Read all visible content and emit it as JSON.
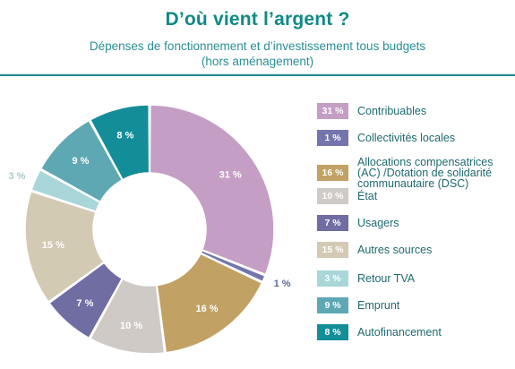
{
  "header": {
    "title": "D’où vient l’argent ?",
    "subtitle_line1": "Dépenses de fonctionnement et d’investissement tous budgets",
    "subtitle_line2": "(hors aménagement)"
  },
  "chart_data": {
    "type": "pie",
    "donut": true,
    "title": "D’où vient l’argent ?",
    "subtitle": "Dépenses de fonctionnement et d’investissement tous budgets (hors aménagement)",
    "legend_position": "right",
    "slices": [
      {
        "label": "Contribuables",
        "value": 31,
        "display": "31 %",
        "color": "#c49ec4"
      },
      {
        "label": "Collectivités locales",
        "value": 1,
        "display": "1 %",
        "color": "#7475ad"
      },
      {
        "label": "Allocations compensatrices\n(AC) /Dotation de solidarité\ncommunautaire (DSC)",
        "value": 16,
        "display": "16 %",
        "color": "#c2a164"
      },
      {
        "label": "État",
        "value": 10,
        "display": "10 %",
        "color": "#d0cac6"
      },
      {
        "label": "Usagers",
        "value": 7,
        "display": "7 %",
        "color": "#6f6da2"
      },
      {
        "label": "Autres sources",
        "value": 15,
        "display": "15 %",
        "color": "#d3cab4"
      },
      {
        "label": "Retour TVA",
        "value": 3,
        "display": "3 %",
        "color": "#a8d6d9"
      },
      {
        "label": "Emprunt",
        "value": 9,
        "display": "9 %",
        "color": "#5ea8b4"
      },
      {
        "label": "Autofinancement",
        "value": 8,
        "display": "8 %",
        "color": "#138e98"
      }
    ]
  }
}
